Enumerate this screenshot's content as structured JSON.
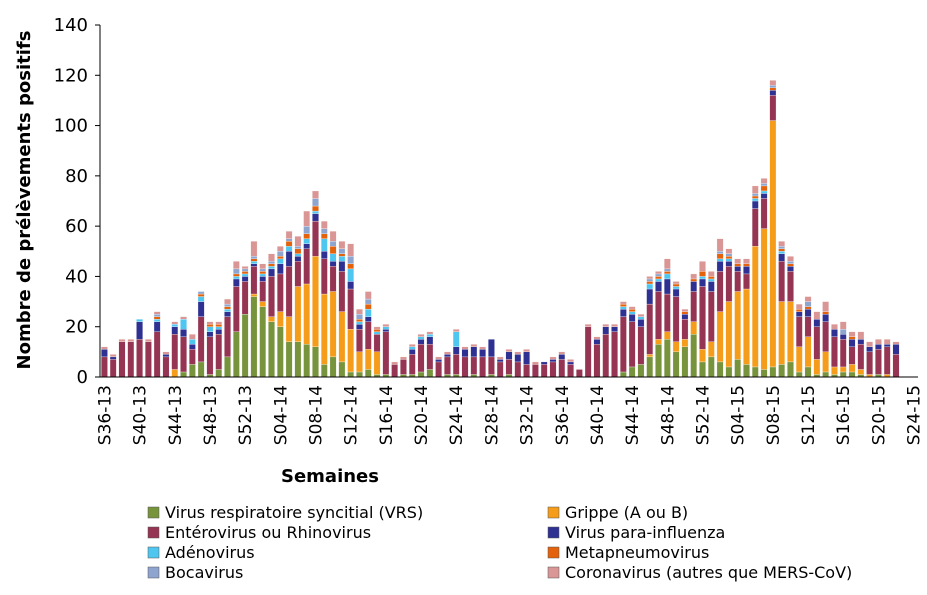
{
  "chart_data": {
    "type": "stacked_bar",
    "xlabel": "Semaines",
    "ylabel": "Nombre de prélèvements positifs",
    "categories": [
      "S36-13",
      null,
      null,
      null,
      "S40-13",
      null,
      null,
      null,
      "S44-13",
      null,
      null,
      null,
      "S48-13",
      null,
      null,
      null,
      "S52-13",
      null,
      null,
      null,
      "S04-14",
      null,
      null,
      null,
      "S08-14",
      null,
      null,
      null,
      "S12-14",
      null,
      null,
      null,
      "S16-14",
      null,
      null,
      null,
      "S20-14",
      null,
      null,
      null,
      "S24-14",
      null,
      null,
      null,
      "S28-14",
      null,
      null,
      null,
      "S32-14",
      null,
      null,
      null,
      "S36-14",
      null,
      null,
      null,
      "S40-14",
      null,
      null,
      null,
      "S44-14",
      null,
      null,
      null,
      "S48-14",
      null,
      null,
      null,
      "S52-14",
      null,
      null,
      null,
      "S04-15",
      null,
      null,
      null,
      "S08-15",
      null,
      null,
      null,
      "S12-15",
      null,
      null,
      null,
      "S16-15",
      null,
      null,
      null,
      "S20-15",
      null,
      null,
      null,
      "S24-15"
    ],
    "series": [
      {
        "name": "Virus respiratoire syncitial (VRS)",
        "color": "#77933c",
        "values": [
          0,
          0,
          0,
          0,
          0,
          0,
          0,
          0,
          0,
          2,
          5,
          6,
          1,
          3,
          8,
          18,
          25,
          32,
          28,
          22,
          20,
          14,
          14,
          13,
          12,
          5,
          8,
          6,
          2,
          2,
          3,
          1,
          1,
          0,
          1,
          1,
          2,
          3,
          0,
          1,
          1,
          0,
          1,
          0,
          1,
          0,
          1,
          0,
          0,
          0,
          0,
          0,
          0,
          0,
          0,
          0,
          0,
          0,
          0,
          2,
          4,
          5,
          8,
          13,
          15,
          10,
          12,
          17,
          6,
          8,
          6,
          4,
          7,
          5,
          4,
          3,
          4,
          5,
          6,
          2,
          4,
          1,
          2,
          1,
          2,
          2,
          1,
          0,
          1,
          0,
          0,
          null,
          null
        ]
      },
      {
        "name": "Grippe (A ou B)",
        "color": "#f59d1a",
        "values": [
          0,
          0,
          0,
          0,
          0,
          0,
          0,
          0,
          3,
          0,
          0,
          0,
          0,
          0,
          0,
          0,
          0,
          1,
          2,
          2,
          6,
          10,
          22,
          24,
          36,
          28,
          26,
          20,
          17,
          8,
          8,
          9,
          0,
          0,
          0,
          0,
          0,
          0,
          0,
          0,
          0,
          0,
          0,
          0,
          0,
          0,
          0,
          0,
          0,
          0,
          0,
          0,
          0,
          0,
          0,
          0,
          0,
          0,
          0,
          0,
          0,
          0,
          1,
          2,
          3,
          4,
          3,
          5,
          5,
          6,
          20,
          26,
          27,
          30,
          48,
          56,
          98,
          25,
          24,
          10,
          12,
          6,
          8,
          3,
          2,
          3,
          2,
          1,
          0,
          1,
          0,
          null,
          null
        ]
      },
      {
        "name": "Entérovirus ou Rhinovirus",
        "color": "#953553",
        "values": [
          8,
          7,
          14,
          14,
          15,
          14,
          18,
          8,
          14,
          14,
          6,
          18,
          15,
          14,
          16,
          18,
          13,
          11,
          8,
          16,
          15,
          20,
          10,
          14,
          14,
          14,
          10,
          16,
          16,
          9,
          11,
          7,
          17,
          5,
          6,
          8,
          11,
          10,
          6,
          7,
          8,
          8,
          7,
          8,
          7,
          6,
          6,
          6,
          5,
          5,
          5,
          6,
          7,
          5,
          3,
          20,
          13,
          17,
          18,
          22,
          18,
          15,
          20,
          19,
          15,
          18,
          8,
          12,
          25,
          20,
          16,
          14,
          8,
          6,
          15,
          12,
          10,
          16,
          12,
          12,
          8,
          13,
          12,
          12,
          11,
          7,
          10,
          9,
          10,
          11,
          9,
          null,
          null
        ]
      },
      {
        "name": "Virus para-influenza",
        "color": "#2e3192",
        "values": [
          3,
          1,
          0,
          0,
          7,
          0,
          4,
          1,
          3,
          3,
          2,
          6,
          2,
          2,
          2,
          3,
          2,
          1,
          2,
          3,
          4,
          6,
          2,
          2,
          3,
          3,
          2,
          4,
          3,
          2,
          2,
          0,
          1,
          0,
          0,
          2,
          2,
          3,
          1,
          1,
          3,
          3,
          4,
          3,
          7,
          1,
          3,
          3,
          5,
          0,
          1,
          1,
          2,
          1,
          0,
          0,
          2,
          3,
          2,
          3,
          3,
          3,
          6,
          4,
          6,
          3,
          2,
          4,
          3,
          4,
          4,
          2,
          2,
          3,
          3,
          2,
          2,
          3,
          2,
          2,
          3,
          3,
          3,
          3,
          2,
          3,
          2,
          2,
          2,
          1,
          4,
          null,
          null
        ]
      },
      {
        "name": "Adénovirus",
        "color": "#4fc6f0",
        "values": [
          0,
          0,
          0,
          0,
          1,
          0,
          1,
          0,
          1,
          4,
          2,
          2,
          2,
          1,
          1,
          1,
          1,
          1,
          1,
          1,
          2,
          2,
          1,
          2,
          1,
          5,
          3,
          2,
          5,
          1,
          3,
          1,
          1,
          0,
          0,
          1,
          1,
          1,
          0,
          0,
          6,
          0,
          0,
          0,
          0,
          0,
          0,
          0,
          0,
          0,
          0,
          0,
          0,
          0,
          0,
          0,
          0,
          0,
          0,
          1,
          1,
          1,
          2,
          1,
          2,
          1,
          0,
          0,
          1,
          1,
          1,
          1,
          0,
          0,
          1,
          1,
          0,
          1,
          0,
          0,
          0,
          0,
          0,
          0,
          0,
          0,
          0,
          0,
          0,
          0,
          0,
          null,
          null
        ]
      },
      {
        "name": "Metapneumovirus",
        "color": "#e4620c",
        "values": [
          0,
          0,
          0,
          0,
          0,
          0,
          1,
          0,
          0,
          0,
          0,
          1,
          1,
          1,
          1,
          1,
          1,
          1,
          1,
          1,
          1,
          2,
          2,
          2,
          2,
          2,
          3,
          1,
          2,
          1,
          2,
          1,
          0,
          0,
          0,
          0,
          0,
          0,
          0,
          0,
          0,
          0,
          0,
          0,
          0,
          0,
          0,
          0,
          0,
          0,
          0,
          0,
          0,
          0,
          0,
          0,
          0,
          0,
          0,
          1,
          1,
          0,
          1,
          1,
          1,
          1,
          1,
          1,
          2,
          1,
          2,
          1,
          1,
          1,
          1,
          2,
          1,
          1,
          1,
          1,
          1,
          0,
          1,
          0,
          0,
          1,
          0,
          0,
          0,
          0,
          0,
          null,
          null
        ]
      },
      {
        "name": "Bocavirus",
        "color": "#8ea5cf",
        "values": [
          0,
          0,
          0,
          0,
          0,
          0,
          1,
          0,
          0,
          0,
          0,
          1,
          0,
          0,
          1,
          2,
          1,
          1,
          1,
          1,
          2,
          1,
          1,
          3,
          3,
          2,
          2,
          2,
          3,
          2,
          2,
          0,
          0,
          0,
          0,
          0,
          0,
          0,
          0,
          0,
          0,
          0,
          0,
          0,
          0,
          0,
          0,
          0,
          0,
          0,
          0,
          0,
          0,
          0,
          0,
          0,
          0,
          0,
          0,
          0,
          0,
          0,
          1,
          1,
          1,
          0,
          0,
          0,
          0,
          0,
          1,
          1,
          0,
          0,
          1,
          1,
          1,
          1,
          1,
          0,
          2,
          0,
          0,
          0,
          2,
          0,
          0,
          0,
          0,
          0,
          0,
          null,
          null
        ]
      },
      {
        "name": "Coronavirus (autres que MERS-CoV)",
        "color": "#d99694",
        "values": [
          1,
          1,
          1,
          1,
          0,
          1,
          1,
          1,
          1,
          1,
          2,
          0,
          1,
          1,
          2,
          3,
          1,
          6,
          2,
          3,
          2,
          3,
          4,
          6,
          3,
          3,
          4,
          3,
          5,
          2,
          3,
          1,
          1,
          1,
          1,
          1,
          1,
          1,
          1,
          1,
          1,
          1,
          1,
          1,
          0,
          1,
          1,
          1,
          1,
          1,
          0,
          1,
          1,
          1,
          0,
          1,
          1,
          1,
          1,
          1,
          1,
          1,
          1,
          1,
          4,
          1,
          1,
          2,
          4,
          2,
          5,
          2,
          2,
          2,
          3,
          2,
          2,
          2,
          2,
          2,
          2,
          3,
          4,
          2,
          3,
          2,
          3,
          2,
          2,
          2,
          1,
          null,
          null
        ]
      }
    ],
    "ylim": [
      0,
      140
    ],
    "yticks": [
      0,
      20,
      40,
      60,
      80,
      100,
      120,
      140
    ],
    "grid": false
  }
}
